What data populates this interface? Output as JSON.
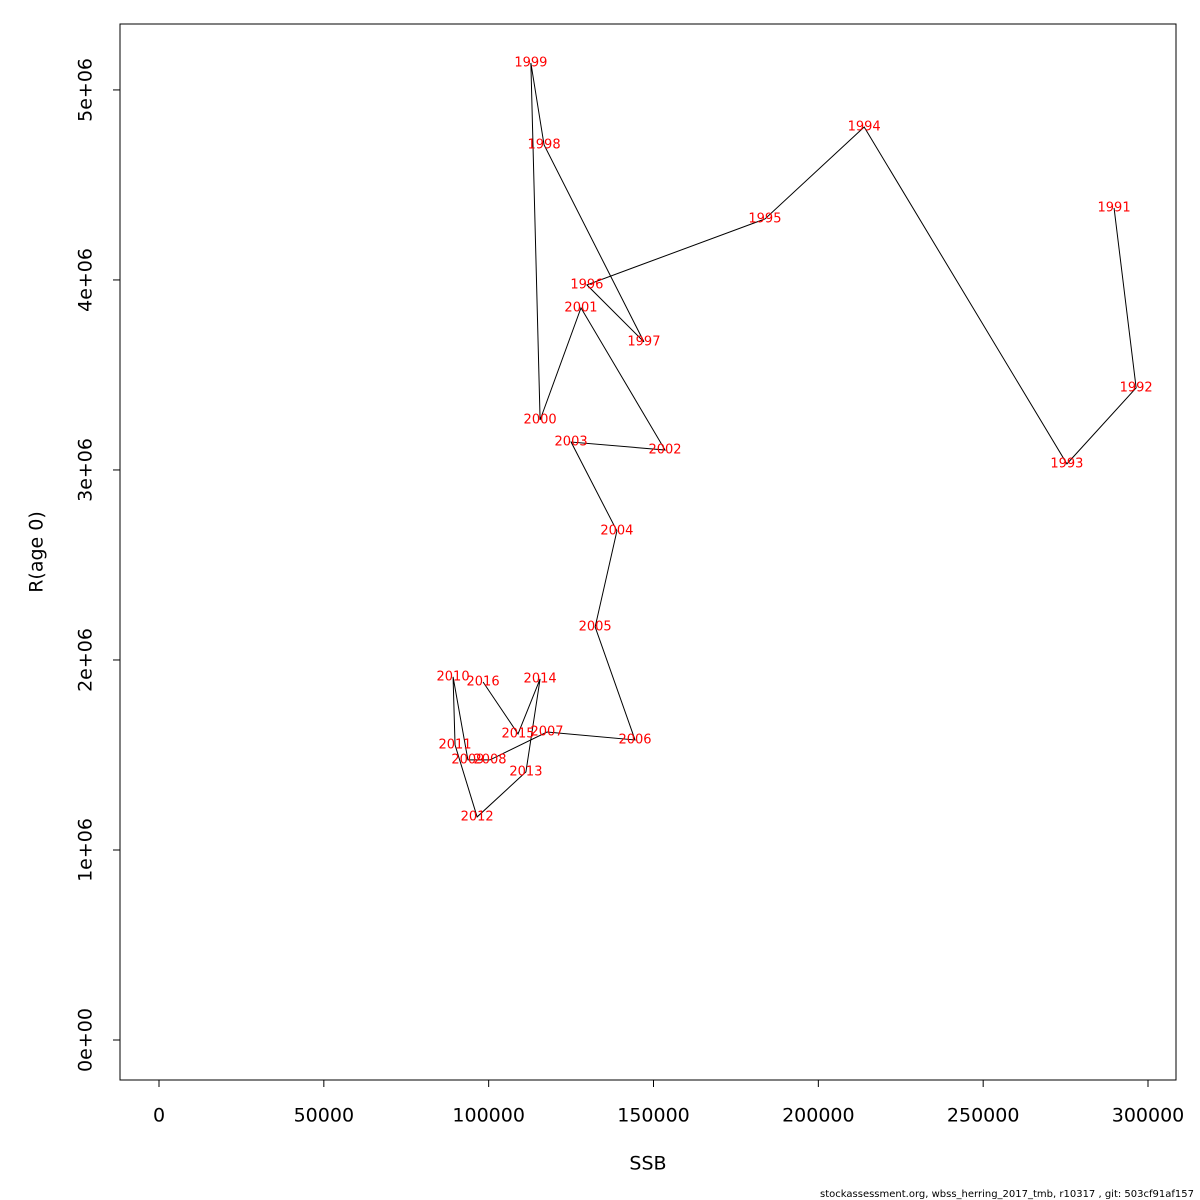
{
  "chart_data": {
    "type": "line",
    "xlabel": "SSB",
    "ylabel": "R(age 0)",
    "footer": "stockassessment.org, wbss_herring_2017_tmb, r10317 , git: 503cf91af157",
    "x": [
      289700,
      296400,
      275400,
      213900,
      183800,
      129800,
      147100,
      116800,
      112800,
      115600,
      128000,
      153500,
      125000,
      138900,
      132300,
      144400,
      117700,
      100400,
      93700,
      89200,
      89800,
      96500,
      111300,
      115600,
      108900,
      98300
    ],
    "values": [
      4379000,
      3432000,
      3032000,
      4805000,
      4321000,
      3974000,
      3674000,
      4711000,
      5142000,
      3263000,
      3853000,
      3105000,
      3147000,
      2679000,
      2174000,
      1579000,
      1621000,
      1474000,
      1474000,
      1911000,
      1553000,
      1174000,
      1411000,
      1900000,
      1611000,
      1884000
    ],
    "point_labels": [
      "1991",
      "1992",
      "1993",
      "1994",
      "1995",
      "1996",
      "1997",
      "1998",
      "1999",
      "2000",
      "2001",
      "2002",
      "2003",
      "2004",
      "2005",
      "2006",
      "2007",
      "2008",
      "2009",
      "2010",
      "2011",
      "2012",
      "2013",
      "2014",
      "2015",
      "2016"
    ],
    "line_color": "#000000",
    "label_color": "#ff0000",
    "xlim": [
      -11830,
      308490
    ],
    "ylim": [
      -210500,
      5347000
    ],
    "xticks": [
      0,
      50000,
      100000,
      150000,
      200000,
      250000,
      300000
    ],
    "yticks": [
      {
        "value": 0,
        "label": "0e+00"
      },
      {
        "value": 1000000,
        "label": "1e+06"
      },
      {
        "value": 2000000,
        "label": "2e+06"
      },
      {
        "value": 3000000,
        "label": "3e+06"
      },
      {
        "value": 4000000,
        "label": "4e+06"
      },
      {
        "value": 5000000,
        "label": "5e+06"
      }
    ]
  }
}
